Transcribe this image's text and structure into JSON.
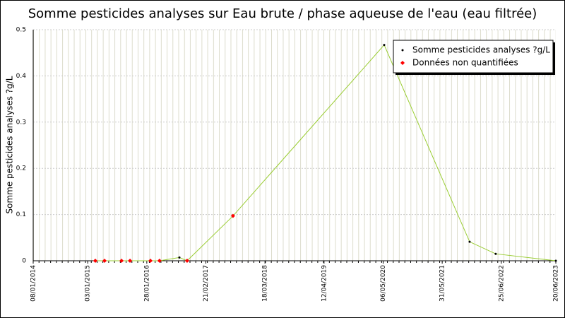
{
  "chart_data": {
    "type": "line",
    "title": "Somme pesticides analyses sur Eau brute / phase aqueuse de l'eau (eau filtrée)",
    "y_label": "Somme pesticides analyses ?g/L",
    "xlim": [
      "08/01/2014",
      "20/06/2023"
    ],
    "xticks": [
      "08/01/2014",
      "03/01/2015",
      "28/01/2016",
      "21/02/2017",
      "18/03/2018",
      "12/04/2019",
      "06/05/2020",
      "31/05/2021",
      "25/06/2022",
      "20/06/2023"
    ],
    "ylim": [
      0,
      0.5
    ],
    "yticks": [
      0,
      0.1,
      0.2,
      0.3,
      0.4,
      0.5
    ],
    "grid": true,
    "legend": "top-right",
    "series": [
      {
        "name": "Somme pesticides analyses ?g/L",
        "color": "#9acd32",
        "marker_color": "#000000",
        "line": true,
        "x": [
          "22/02/2015",
          "24/04/2015",
          "14/08/2015",
          "09/10/2015",
          "21/02/2016",
          "21/04/2016",
          "30/08/2016",
          "20/10/2016",
          "19/08/2017",
          "13/05/2020",
          "28/11/2021",
          "19/05/2022",
          "20/06/2023"
        ],
        "values": [
          0,
          0,
          0,
          0,
          0,
          0,
          0.007,
          0,
          0.097,
          0.467,
          0.041,
          0.015,
          0
        ]
      },
      {
        "name": "Données non quantifiées",
        "color": "#ff0000",
        "line": false,
        "x": [
          "22/02/2015",
          "24/04/2015",
          "14/08/2015",
          "09/10/2015",
          "21/02/2016",
          "21/04/2016",
          "20/10/2016",
          "19/08/2017"
        ],
        "values": [
          0,
          0,
          0,
          0,
          0,
          0,
          0,
          0.097
        ]
      }
    ]
  }
}
